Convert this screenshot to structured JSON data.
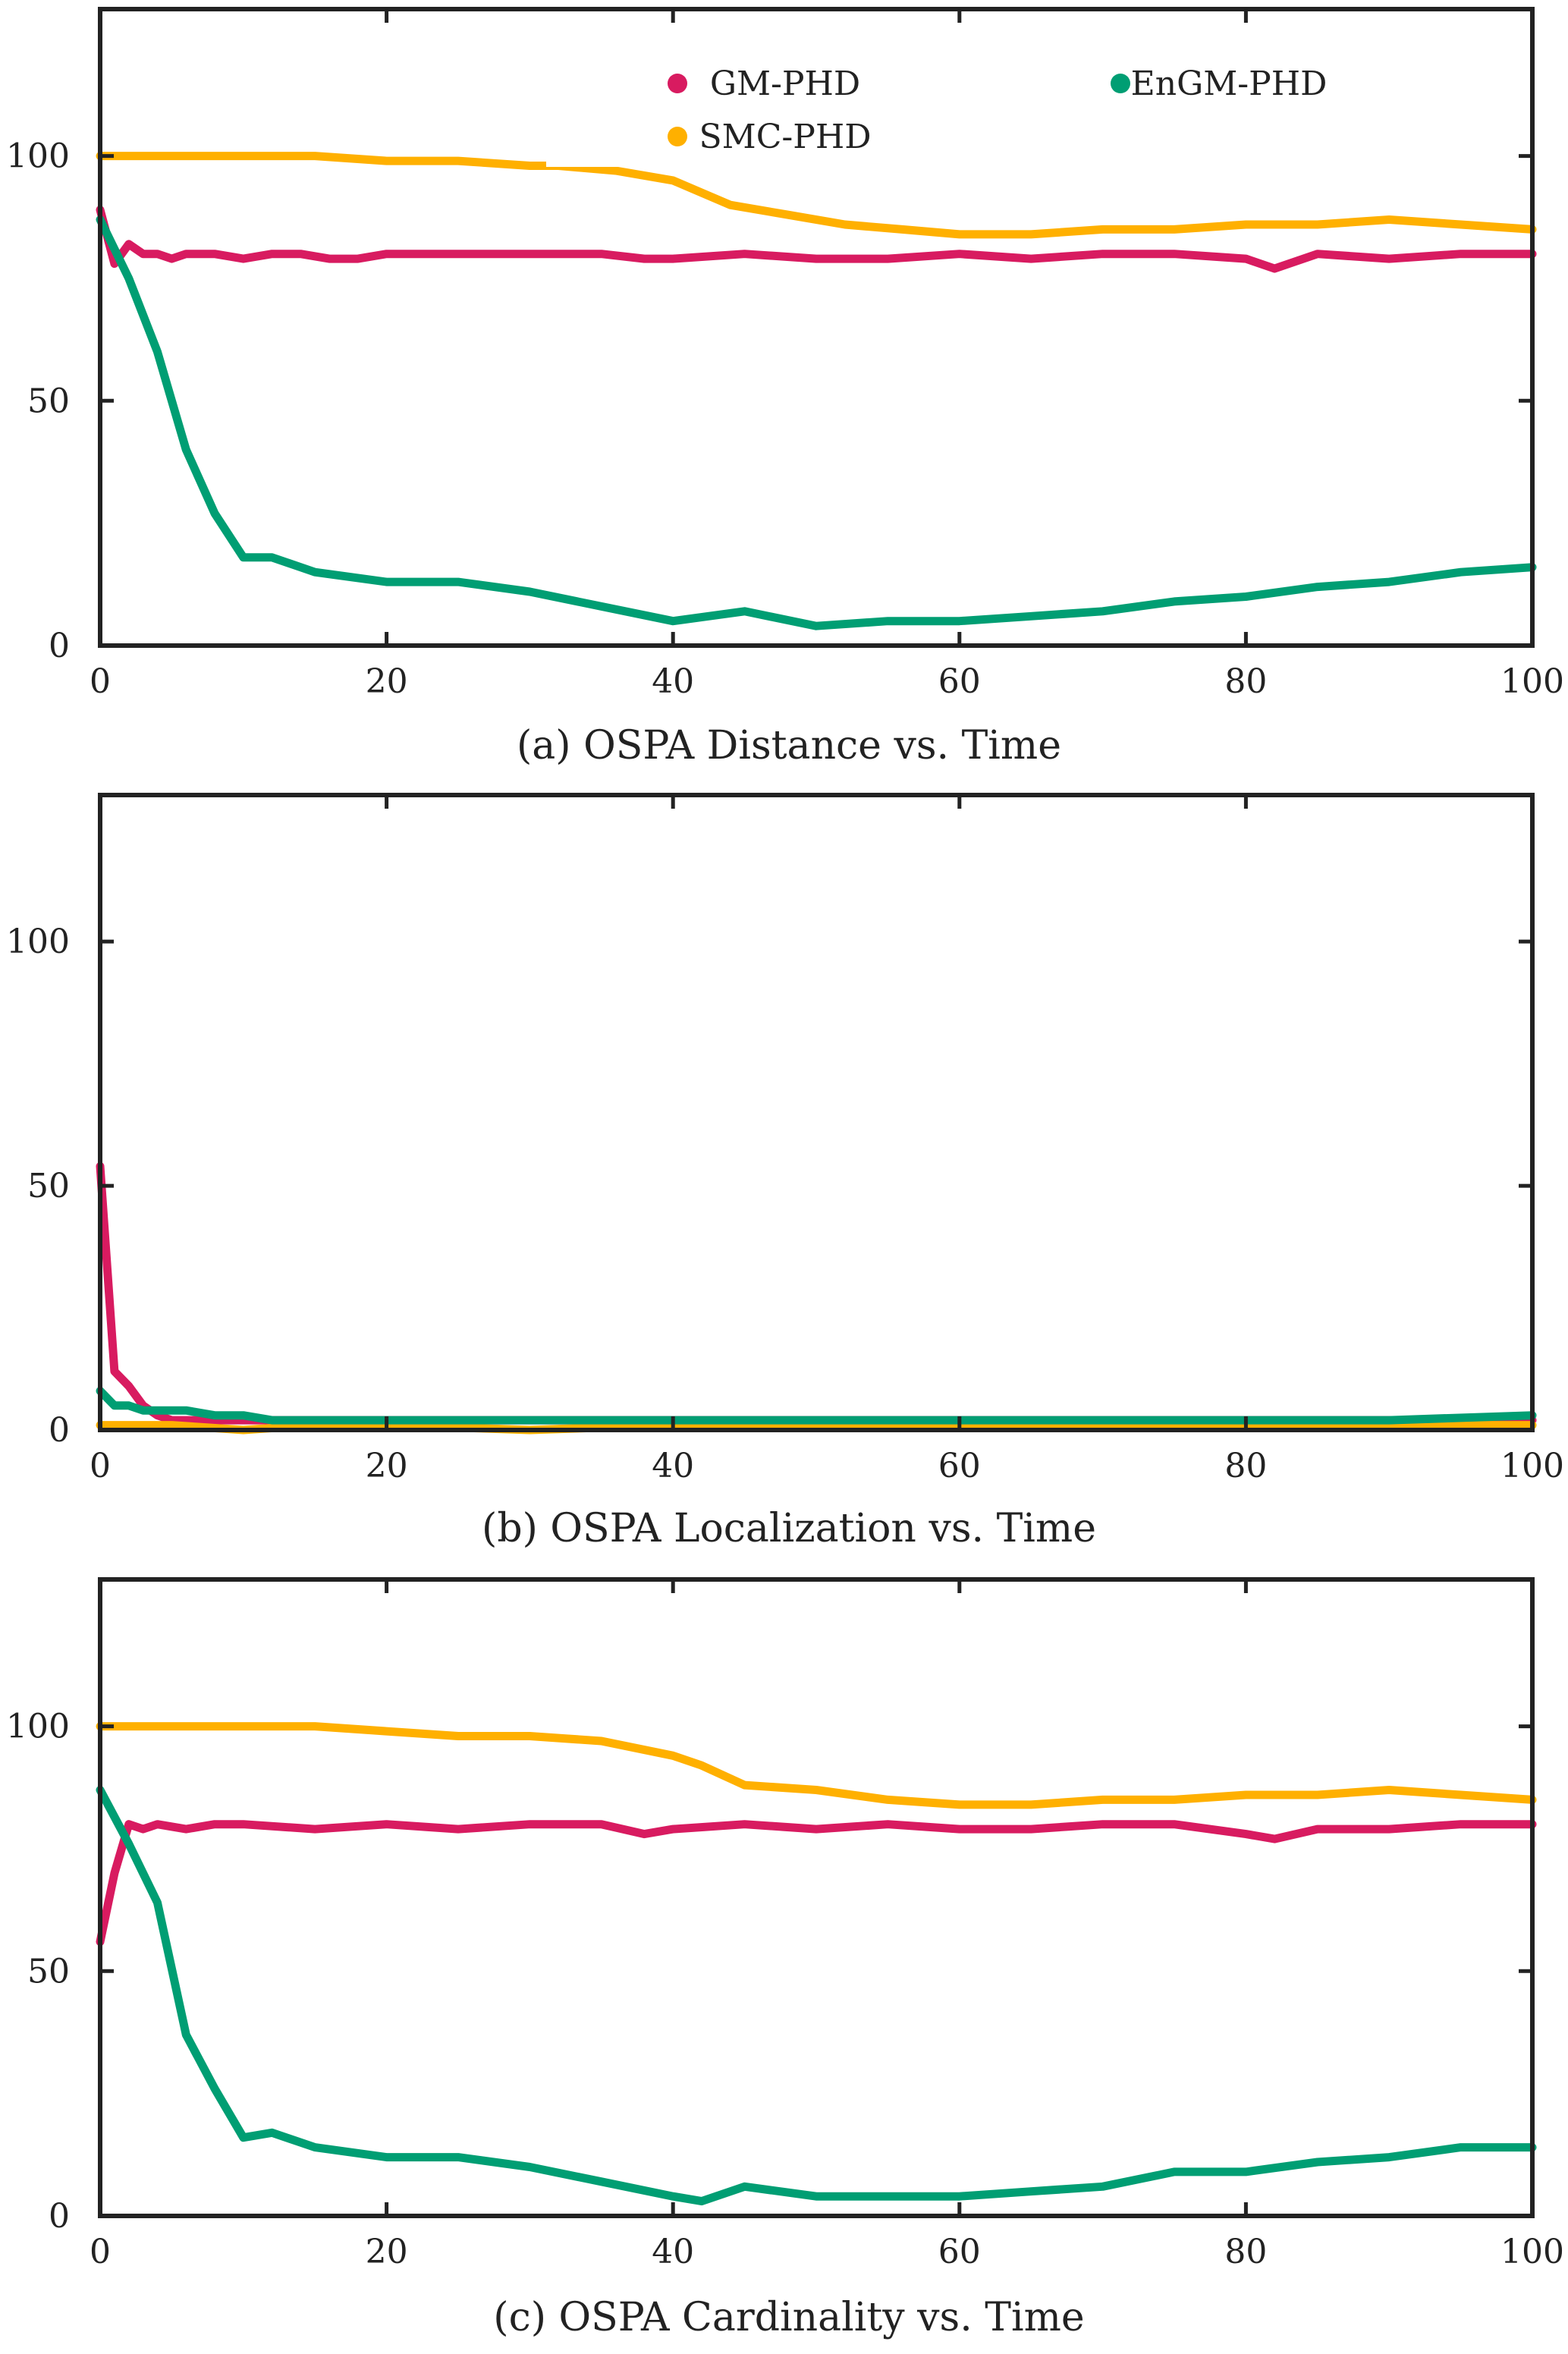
{
  "chart_data": [
    {
      "type": "line",
      "caption": "(a) OSPA Distance vs. Time",
      "xlim": [
        0,
        100
      ],
      "ylim": [
        0,
        130
      ],
      "xticks": [
        0,
        20,
        40,
        60,
        80,
        100
      ],
      "yticks": [
        0,
        50,
        100
      ],
      "legend": {
        "placement": "top",
        "entries": [
          "GM-PHD",
          "SMC-PHD",
          "EnGM-PHD"
        ]
      },
      "series": [
        {
          "name": "GM-PHD",
          "color": "#d81b60",
          "x": [
            0,
            1,
            2,
            3,
            4,
            5,
            6,
            8,
            10,
            12,
            14,
            16,
            18,
            20,
            25,
            30,
            35,
            38,
            40,
            45,
            50,
            55,
            60,
            65,
            70,
            75,
            80,
            82,
            85,
            90,
            95,
            100
          ],
          "y": [
            89,
            78,
            82,
            80,
            80,
            79,
            80,
            80,
            79,
            80,
            80,
            79,
            79,
            80,
            80,
            80,
            80,
            79,
            79,
            80,
            79,
            79,
            80,
            79,
            80,
            80,
            79,
            77,
            80,
            79,
            80,
            80
          ]
        },
        {
          "name": "SMC-PHD",
          "color": "#ffb000",
          "x": [
            0,
            5,
            10,
            15,
            20,
            25,
            30,
            32,
            36,
            40,
            44,
            48,
            52,
            56,
            60,
            65,
            70,
            75,
            80,
            85,
            90,
            95,
            100
          ],
          "y": [
            100,
            100,
            100,
            100,
            99,
            99,
            98,
            98,
            97,
            95,
            90,
            88,
            86,
            85,
            84,
            84,
            85,
            85,
            86,
            86,
            87,
            86,
            85
          ]
        },
        {
          "name": "EnGM-PHD",
          "color": "#009e73",
          "x": [
            0,
            2,
            4,
            6,
            8,
            10,
            12,
            15,
            20,
            25,
            30,
            35,
            40,
            45,
            50,
            55,
            60,
            65,
            70,
            75,
            80,
            85,
            90,
            95,
            100
          ],
          "y": [
            87,
            75,
            60,
            40,
            27,
            18,
            18,
            15,
            13,
            13,
            11,
            8,
            5,
            7,
            4,
            5,
            5,
            6,
            7,
            9,
            10,
            12,
            13,
            15,
            16
          ]
        }
      ]
    },
    {
      "type": "line",
      "caption": "(b) OSPA Localization vs. Time",
      "xlim": [
        0,
        100
      ],
      "ylim": [
        0,
        130
      ],
      "xticks": [
        0,
        20,
        40,
        60,
        80,
        100
      ],
      "yticks": [
        0,
        50,
        100
      ],
      "series": [
        {
          "name": "GM-PHD",
          "color": "#d81b60",
          "x": [
            0,
            1,
            2,
            3,
            4,
            5,
            6,
            8,
            10,
            15,
            20,
            30,
            40,
            45,
            50,
            60,
            70,
            76,
            80,
            85,
            90,
            100
          ],
          "y": [
            54,
            12,
            9,
            5,
            3,
            2,
            2,
            2,
            2,
            2,
            2,
            2,
            2,
            2,
            2,
            2,
            2,
            2,
            2,
            2,
            2,
            2
          ]
        },
        {
          "name": "SMC-PHD",
          "color": "#ffb000",
          "x": [
            0,
            5,
            10,
            15,
            20,
            30,
            40,
            50,
            60,
            70,
            80,
            90,
            100
          ],
          "y": [
            1,
            1,
            0,
            1,
            1,
            0,
            1,
            1,
            1,
            1,
            1,
            1,
            1
          ]
        },
        {
          "name": "EnGM-PHD",
          "color": "#009e73",
          "x": [
            0,
            1,
            2,
            3,
            4,
            5,
            6,
            8,
            10,
            12,
            15,
            20,
            30,
            40,
            50,
            60,
            70,
            80,
            90,
            100
          ],
          "y": [
            8,
            5,
            5,
            4,
            4,
            4,
            4,
            3,
            3,
            2,
            2,
            2,
            2,
            2,
            2,
            2,
            2,
            2,
            2,
            3
          ]
        }
      ]
    },
    {
      "type": "line",
      "caption": "(c) OSPA Cardinality vs. Time",
      "xlim": [
        0,
        100
      ],
      "ylim": [
        0,
        130
      ],
      "xticks": [
        0,
        20,
        40,
        60,
        80,
        100
      ],
      "yticks": [
        0,
        50,
        100
      ],
      "series": [
        {
          "name": "GM-PHD",
          "color": "#d81b60",
          "x": [
            0,
            1,
            2,
            3,
            4,
            6,
            8,
            10,
            15,
            20,
            25,
            30,
            35,
            38,
            40,
            45,
            50,
            55,
            60,
            65,
            70,
            75,
            80,
            82,
            85,
            90,
            95,
            100
          ],
          "y": [
            56,
            70,
            80,
            79,
            80,
            79,
            80,
            80,
            79,
            80,
            79,
            80,
            80,
            78,
            79,
            80,
            79,
            80,
            79,
            79,
            80,
            80,
            78,
            77,
            79,
            79,
            80,
            80
          ]
        },
        {
          "name": "SMC-PHD",
          "color": "#ffb000",
          "x": [
            0,
            5,
            10,
            15,
            20,
            25,
            30,
            35,
            40,
            42,
            45,
            50,
            55,
            60,
            65,
            70,
            75,
            80,
            85,
            90,
            95,
            100
          ],
          "y": [
            100,
            100,
            100,
            100,
            99,
            98,
            98,
            97,
            94,
            92,
            88,
            87,
            85,
            84,
            84,
            85,
            85,
            86,
            86,
            87,
            86,
            85
          ]
        },
        {
          "name": "EnGM-PHD",
          "color": "#009e73",
          "x": [
            0,
            2,
            4,
            6,
            8,
            10,
            12,
            15,
            20,
            25,
            30,
            35,
            40,
            42,
            45,
            50,
            55,
            60,
            65,
            70,
            75,
            80,
            85,
            90,
            95,
            100
          ],
          "y": [
            87,
            76,
            64,
            37,
            26,
            16,
            17,
            14,
            12,
            12,
            10,
            7,
            4,
            3,
            6,
            4,
            4,
            4,
            5,
            6,
            9,
            9,
            11,
            12,
            14,
            14
          ]
        }
      ]
    }
  ]
}
